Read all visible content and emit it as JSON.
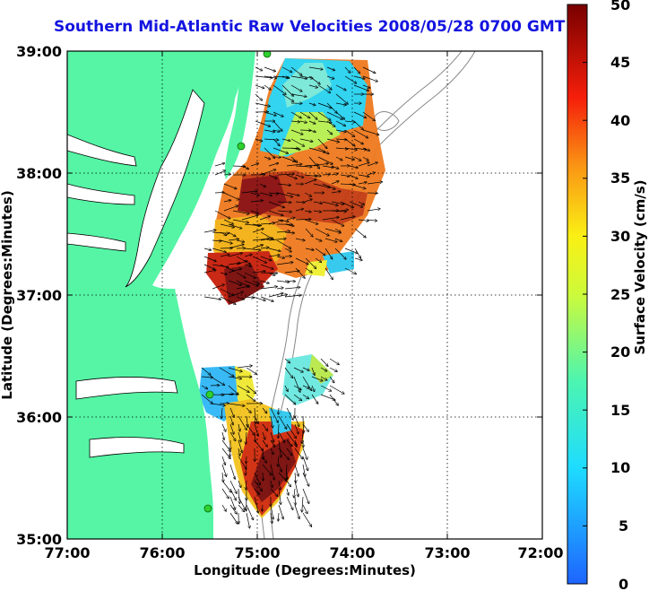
{
  "title": "Southern Mid-Atlantic Raw Velocities 2008/05/28 0700 GMT",
  "chart_data": {
    "type": "map",
    "xlabel": "Longitude (Degrees:Minutes)",
    "ylabel": "Latitude (Degrees:Minutes)",
    "x_ticks": [
      "77:00",
      "76:00",
      "75:00",
      "74:00",
      "73:00",
      "72:00"
    ],
    "y_ticks": [
      "39:00",
      "38:00",
      "37:00",
      "36:00",
      "35:00"
    ],
    "xlim": [
      -77,
      -72
    ],
    "ylim": [
      35,
      39
    ],
    "grid": true,
    "colorbar": {
      "label": "Surface Velocity (cm/s)",
      "ticks": [
        "50",
        "45",
        "40",
        "35",
        "30",
        "25",
        "20",
        "15",
        "10",
        "5",
        "0"
      ],
      "range": [
        0,
        50
      ]
    },
    "colors": {
      "land": "#55f5a5",
      "title": "#1414e0",
      "stations": "#2fd02f"
    }
  }
}
